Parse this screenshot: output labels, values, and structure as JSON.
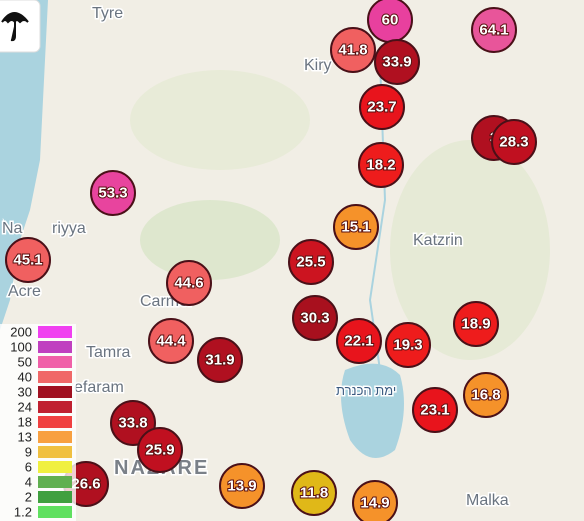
{
  "map": {
    "places": [
      "Tyre",
      "Kiry",
      "Katzrin",
      "Na",
      "riyya",
      "Acre",
      "Carmel",
      "Tamra",
      "efaram",
      "NAZARE",
      "Malka",
      "ימת הכנרת"
    ],
    "markers": [
      {
        "label": "60",
        "color": "#e8409e"
      },
      {
        "label": "64.1",
        "color": "#e8559a"
      },
      {
        "label": "41.8",
        "color": "#f06060"
      },
      {
        "label": "33.9",
        "color": "#b01020"
      },
      {
        "label": "23.7",
        "color": "#e8141c"
      },
      {
        "label": "3",
        "color": "#b01020"
      },
      {
        "label": "28.3",
        "color": "#c01020"
      },
      {
        "label": "18.2",
        "color": "#ee1c1c"
      },
      {
        "label": "53.3",
        "color": "#e8449e"
      },
      {
        "label": "15.1",
        "color": "#f5922a"
      },
      {
        "label": "45.1",
        "color": "#f06060"
      },
      {
        "label": "25.5",
        "color": "#cc1420"
      },
      {
        "label": "44.6",
        "color": "#f06060"
      },
      {
        "label": "30.3",
        "color": "#a8101e"
      },
      {
        "label": "22.1",
        "color": "#e8141c"
      },
      {
        "label": "19.3",
        "color": "#ee1c1c"
      },
      {
        "label": "18.9",
        "color": "#ee1c1c"
      },
      {
        "label": "44.4",
        "color": "#f06060"
      },
      {
        "label": "31.9",
        "color": "#b01020"
      },
      {
        "label": "33.8",
        "color": "#b01020"
      },
      {
        "label": "25.9",
        "color": "#c01020"
      },
      {
        "label": "23.1",
        "color": "#e8141c"
      },
      {
        "label": "16.8",
        "color": "#f5922a"
      },
      {
        "label": "26.6",
        "color": "#b01020"
      },
      {
        "label": "13.9",
        "color": "#f5922a"
      },
      {
        "label": "11.8",
        "color": "#e0b818"
      },
      {
        "label": "14.9",
        "color": "#f5922a"
      }
    ],
    "legend": [
      {
        "label": "200",
        "color": "#f040f0"
      },
      {
        "label": "100",
        "color": "#c040c0"
      },
      {
        "label": "50",
        "color": "#f060a8"
      },
      {
        "label": "40",
        "color": "#f06868"
      },
      {
        "label": "30",
        "color": "#a01020"
      },
      {
        "label": "24",
        "color": "#c02030"
      },
      {
        "label": "18",
        "color": "#f04040"
      },
      {
        "label": "13",
        "color": "#f8a040"
      },
      {
        "label": "9",
        "color": "#f0c040"
      },
      {
        "label": "6",
        "color": "#f0f040"
      },
      {
        "label": "4",
        "color": "#60b050"
      },
      {
        "label": "2",
        "color": "#40a040"
      },
      {
        "label": "1.2",
        "color": "#60e060"
      }
    ]
  }
}
